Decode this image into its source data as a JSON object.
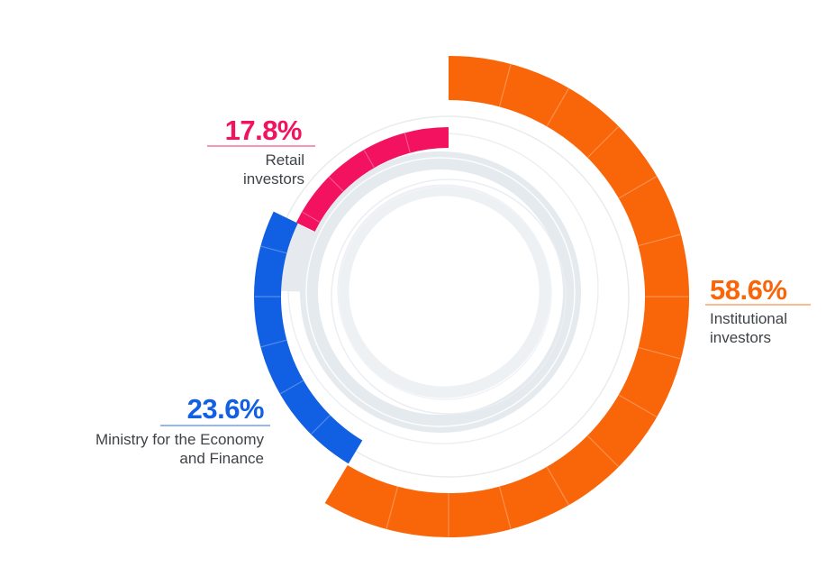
{
  "chart_data": {
    "type": "pie",
    "variant": "concentric-donut-arcs",
    "title": "",
    "unit": "%",
    "start_angle_deg": 0,
    "clockwise": true,
    "legend_position": "around-chart",
    "segments": [
      {
        "name": "Institutional investors",
        "value": 58.6,
        "value_label": "58.6%",
        "name_line1": "Institutional",
        "name_line2": "investors",
        "color": "#F9660A"
      },
      {
        "name": "Ministry for the Economy and Finance",
        "value": 23.6,
        "value_label": "23.6%",
        "name_line1": "Ministry for the Economy",
        "name_line2": "and Finance",
        "color": "#1160E3"
      },
      {
        "name": "Retail investors",
        "value": 17.8,
        "value_label": "17.8%",
        "name_line1": "Retail",
        "name_line2": "investors",
        "color": "#F3125F"
      }
    ],
    "colors": {
      "background": "#FFFFFF",
      "track_gray": "#E6EAEE",
      "thin_ring_gray": "#E8ECEF",
      "sublabel_text": "#3F4347"
    }
  }
}
